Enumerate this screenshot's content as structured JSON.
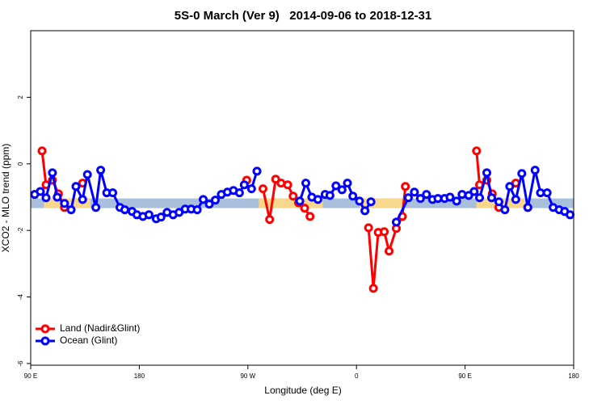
{
  "chart_data": {
    "type": "line",
    "title": "5S-0 March (Ver 9)   2014-09-06 to 2018-12-31",
    "x_label": "Longitude (deg E)",
    "y_label": "XCO2 - MLO trend (ppm)",
    "xlim": [
      90,
      540
    ],
    "ylim": [
      -6.05,
      4
    ],
    "xticks": [
      {
        "value": 90,
        "label": "90 E"
      },
      180,
      {
        "value": 270,
        "label": "90 W"
      },
      {
        "value": 360,
        "label": "0"
      },
      {
        "value": 450,
        "label": "90 E"
      },
      {
        "value": 540,
        "label": "180"
      }
    ],
    "yticks": [
      -6,
      -4,
      -2,
      0,
      2
    ],
    "legend": "bottomleft",
    "band": {
      "range": [
        -1.33,
        -1.04
      ],
      "color": "#a9bfdc",
      "land_color": "#f8d88c",
      "land_spans": [
        [
          101,
          139.5
        ],
        [
          279,
          332
        ],
        [
          362.5,
          399
        ],
        [
          459.5,
          500
        ]
      ]
    },
    "series": [
      {
        "name": "Land (Nadir&Glint)",
        "color": "#ff0000",
        "x": [
          99.4,
          102.7,
          108,
          113,
          118,
          null,
          133,
          null,
          269,
          null,
          282.5,
          288,
          293,
          297.5,
          303,
          307.5,
          312,
          317,
          321.5,
          null,
          370,
          374,
          378,
          383,
          387,
          393,
          398,
          400.5,
          null,
          459.5,
          462,
          468,
          472.5,
          478,
          null,
          492,
          null,
          502
        ],
        "values": [
          0.39,
          -0.63,
          -0.49,
          -0.9,
          -1.31,
          null,
          -0.58,
          null,
          -0.49,
          null,
          -0.75,
          -1.67,
          -0.46,
          -0.58,
          -0.63,
          -0.97,
          -1.17,
          -1.33,
          -1.58,
          null,
          -1.92,
          -3.74,
          -2.06,
          -2.04,
          -2.62,
          -1.94,
          -1.58,
          -0.68,
          null,
          0.39,
          -0.63,
          -0.49,
          -0.9,
          -1.31,
          null,
          -0.58,
          null,
          -1.31
        ]
      },
      {
        "name": "Ocean (Glint)",
        "color": "#0000ff",
        "x": [
          93.3,
          98,
          102.7,
          108,
          112,
          118,
          123.5,
          127.5,
          133,
          137,
          144,
          148,
          153,
          158,
          164,
          168,
          174,
          178,
          183,
          188,
          194,
          198,
          203,
          208,
          213,
          218,
          223,
          228,
          233,
          238,
          243,
          248,
          253,
          258,
          263,
          267,
          273,
          277.5,
          null,
          313,
          318,
          323,
          328,
          334,
          338,
          343,
          348,
          352.5,
          357,
          362.5,
          367,
          372,
          null,
          393,
          403,
          408,
          413,
          418,
          423,
          427.5,
          433,
          437.5,
          443,
          447.5,
          453,
          457.5,
          462,
          468,
          472,
          478,
          483,
          487,
          492,
          497,
          502,
          508,
          512.5,
          518,
          523,
          528,
          532.5,
          537
        ],
        "values": [
          -0.92,
          -0.83,
          -1.02,
          -0.27,
          -1.0,
          -1.19,
          -1.38,
          -0.68,
          -1.07,
          -0.32,
          -1.31,
          -0.19,
          -0.87,
          -0.87,
          -1.31,
          -1.38,
          -1.43,
          -1.53,
          -1.58,
          -1.53,
          -1.65,
          -1.6,
          -1.46,
          -1.53,
          -1.46,
          -1.36,
          -1.36,
          -1.38,
          -1.07,
          -1.21,
          -1.09,
          -0.92,
          -0.85,
          -0.8,
          -0.87,
          -0.63,
          -0.75,
          -0.22,
          null,
          -1.12,
          -0.58,
          -1.0,
          -1.07,
          -0.92,
          -0.95,
          -0.66,
          -0.78,
          -0.58,
          -0.97,
          -1.12,
          -1.41,
          -1.14,
          null,
          -1.75,
          -1.02,
          -0.85,
          -1.04,
          -0.92,
          -1.07,
          -1.04,
          -1.04,
          -1.0,
          -1.12,
          -0.92,
          -0.95,
          -0.83,
          -1.02,
          -0.27,
          -1.02,
          -1.14,
          -1.38,
          -0.68,
          -1.07,
          -0.29,
          -1.31,
          -0.19,
          -0.87,
          -0.87,
          -1.31,
          -1.38,
          -1.43,
          -1.53
        ]
      }
    ]
  }
}
